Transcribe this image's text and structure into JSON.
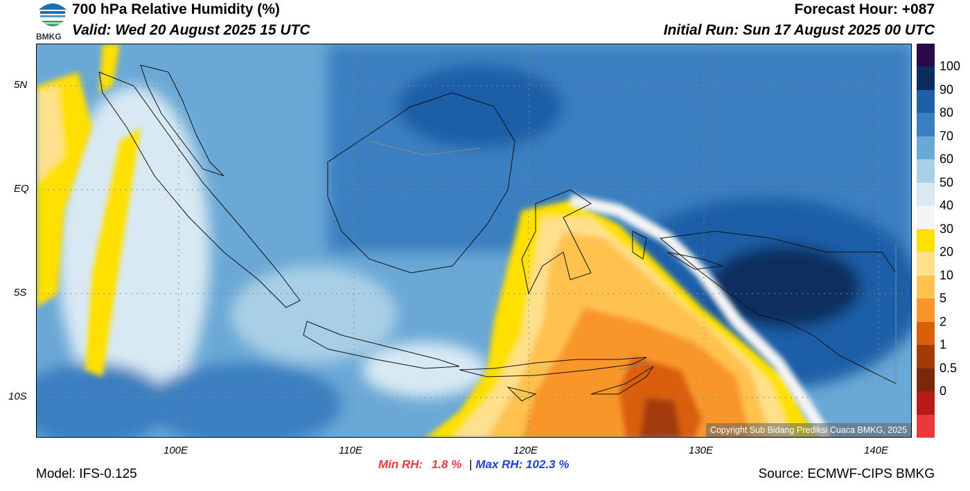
{
  "header": {
    "title": "700 hPa Relative Humidity (%)",
    "valid": "Valid: Wed 20 August 2025 15 UTC",
    "forecast_hour": "Forecast Hour: +087",
    "initial_run": "Initial Run: Sun 17 August 2025 00 UTC",
    "logo_text": "BMKG"
  },
  "map": {
    "lat_labels": [
      "5N",
      "EQ",
      "5S",
      "10S"
    ],
    "lon_labels": [
      "100E",
      "110E",
      "120E",
      "130E",
      "140E"
    ],
    "copyright": "Copyright Sub Bidang Prediksi Cuaca BMKG, 2025"
  },
  "colorbar": {
    "labels": [
      "100",
      "90",
      "80",
      "70",
      "60",
      "50",
      "40",
      "30",
      "20",
      "10",
      "5",
      "2",
      "1",
      "0.5",
      "0"
    ],
    "colors": [
      "#2a0a4a",
      "#0b2d5e",
      "#1f5fa8",
      "#3a7fc0",
      "#6aa8d6",
      "#a9cfe6",
      "#d8e9f3",
      "#f4f4f4",
      "#ffe000",
      "#ffe08c",
      "#ffc250",
      "#f9962a",
      "#d95f0a",
      "#a33a08",
      "#7a2a0a",
      "#b81a1a",
      "#e83a3a"
    ]
  },
  "footer": {
    "model": "Model: IFS-0.125",
    "min_rh_label": "Min RH:",
    "min_rh_value": "1.8 %",
    "separator": "|",
    "max_rh": "Max RH: 102.3 %",
    "source": "Source: ECMWF-CIPS BMKG"
  },
  "colors": {
    "min_rh": "#e8393f",
    "max_rh": "#1f3fe0"
  }
}
